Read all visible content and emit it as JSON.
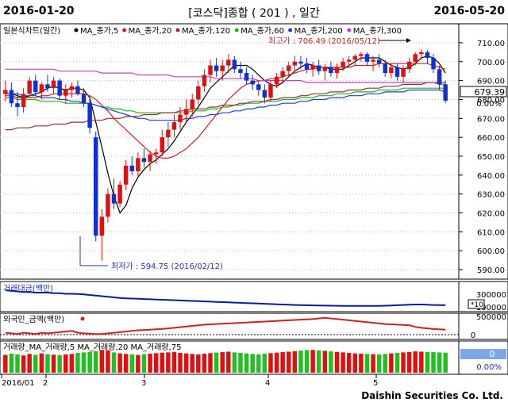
{
  "header": {
    "start_date": "2016-01-20",
    "title": "[코스닥]종합 ( 201 ) , 일간",
    "end_date": "2016-05-20"
  },
  "legend": {
    "main_label": "일본식차트(일간)",
    "items": [
      {
        "label": "MA_종가,5",
        "color": "#000000"
      },
      {
        "label": "MA_종가,20",
        "color": "#d02020"
      },
      {
        "label": "MA_종가,120",
        "color": "#903030"
      },
      {
        "label": "MA_종가,60",
        "color": "#20b020"
      },
      {
        "label": "MA_종가,200",
        "color": "#2040c0"
      },
      {
        "label": "MA_종가,300",
        "color": "#c040c0"
      }
    ]
  },
  "annotations": {
    "high": "최고가 : 706.49 (2016/05/12)",
    "low": "최저가 : 594.75 (2016/02/12)"
  },
  "price_box": {
    "value": "679.39",
    "change": "0.00%"
  },
  "panel2": {
    "label": "거래대금(백만)",
    "ticks": [
      "300000",
      "100000"
    ],
    "scale": "*10"
  },
  "panel3": {
    "label": "외국인_금액(백만)",
    "ticks": [
      "500000",
      "0"
    ]
  },
  "panel4": {
    "label": "거래량_MA_거래량,5  MA_거래량,20  MA_거래량,75",
    "value": "0",
    "change": "0.00%"
  },
  "x_labels": [
    "2016/01",
    "2",
    "3",
    "4",
    "5"
  ],
  "footer": "Daishin Securities Co. Ltd.",
  "chart_data": {
    "type": "candlestick",
    "title": "[코스닥]종합 ( 201 ) , 일간",
    "x_range": [
      "2016-01-20",
      "2016-05-20"
    ],
    "ylim": [
      585,
      715
    ],
    "yticks": [
      590,
      600,
      610,
      620,
      630,
      640,
      650,
      660,
      670,
      680,
      690,
      700,
      710
    ],
    "last_close": 679.39,
    "high": {
      "value": 706.49,
      "date": "2016-05-12"
    },
    "low": {
      "value": 594.75,
      "date": "2016-02-12"
    },
    "candles": [
      [
        683,
        690,
        679,
        685
      ],
      [
        685,
        689,
        676,
        678
      ],
      [
        678,
        684,
        671,
        676
      ],
      [
        676,
        686,
        673,
        683
      ],
      [
        683,
        692,
        681,
        690
      ],
      [
        690,
        693,
        682,
        684
      ],
      [
        684,
        689,
        680,
        688
      ],
      [
        688,
        693,
        684,
        686
      ],
      [
        686,
        692,
        683,
        690
      ],
      [
        690,
        691,
        680,
        682
      ],
      [
        682,
        688,
        678,
        685
      ],
      [
        685,
        689,
        681,
        687
      ],
      [
        687,
        690,
        682,
        683
      ],
      [
        683,
        686,
        676,
        678
      ],
      [
        678,
        681,
        662,
        665
      ],
      [
        660,
        663,
        605,
        608
      ],
      [
        608,
        622,
        594.75,
        618
      ],
      [
        618,
        633,
        615,
        630
      ],
      [
        630,
        638,
        622,
        625
      ],
      [
        625,
        637,
        623,
        635
      ],
      [
        635,
        648,
        632,
        645
      ],
      [
        645,
        650,
        640,
        642
      ],
      [
        642,
        652,
        639,
        649
      ],
      [
        649,
        654,
        644,
        647
      ],
      [
        647,
        653,
        642,
        651
      ],
      [
        651,
        654,
        646,
        652
      ],
      [
        652,
        664,
        650,
        660
      ],
      [
        660,
        668,
        655,
        664
      ],
      [
        664,
        672,
        660,
        668
      ],
      [
        668,
        676,
        664,
        672
      ],
      [
        672,
        680,
        668,
        675
      ],
      [
        675,
        683,
        671,
        680
      ],
      [
        680,
        690,
        677,
        687
      ],
      [
        687,
        696,
        684,
        693
      ],
      [
        693,
        701,
        689,
        698
      ],
      [
        698,
        702,
        692,
        695
      ],
      [
        695,
        701,
        690,
        698
      ],
      [
        698,
        704,
        694,
        701
      ],
      [
        701,
        703,
        694,
        696
      ],
      [
        696,
        700,
        691,
        694
      ],
      [
        694,
        697,
        688,
        690
      ],
      [
        690,
        693,
        685,
        688
      ],
      [
        688,
        690,
        682,
        685
      ],
      [
        685,
        688,
        678,
        681
      ],
      [
        681,
        690,
        679,
        688
      ],
      [
        688,
        694,
        686,
        692
      ],
      [
        692,
        697,
        689,
        695
      ],
      [
        695,
        700,
        692,
        698
      ],
      [
        698,
        703,
        695,
        700
      ],
      [
        700,
        703,
        696,
        699
      ],
      [
        699,
        702,
        694,
        696
      ],
      [
        696,
        700,
        692,
        698
      ],
      [
        698,
        701,
        693,
        695
      ],
      [
        695,
        699,
        690,
        697
      ],
      [
        697,
        700,
        692,
        694
      ],
      [
        694,
        699,
        691,
        697
      ],
      [
        697,
        702,
        695,
        700
      ],
      [
        700,
        703,
        697,
        701
      ],
      [
        701,
        704,
        698,
        703
      ],
      [
        703,
        705,
        700,
        704
      ],
      [
        704,
        705,
        698,
        700
      ],
      [
        700,
        703,
        695,
        701
      ],
      [
        701,
        704,
        697,
        699
      ],
      [
        699,
        701,
        692,
        694
      ],
      [
        694,
        699,
        691,
        697
      ],
      [
        697,
        699,
        690,
        692
      ],
      [
        692,
        698,
        689,
        696
      ],
      [
        696,
        702,
        694,
        700
      ],
      [
        700,
        705,
        698,
        704
      ],
      [
        704,
        706.49,
        701,
        705
      ],
      [
        705,
        706,
        699,
        702
      ],
      [
        702,
        704,
        694,
        696
      ],
      [
        696,
        698,
        685,
        688
      ],
      [
        688,
        690,
        678,
        679.39
      ]
    ],
    "ma": {
      "MA_종가,5": [
        683,
        683,
        682,
        681,
        682,
        683,
        684,
        686,
        687,
        686,
        685,
        686,
        686,
        685,
        681,
        668,
        655,
        641,
        629,
        620,
        624,
        633,
        639,
        643,
        646,
        648,
        651,
        654,
        658,
        663,
        668,
        672,
        676,
        681,
        686,
        689,
        692,
        695,
        698,
        698,
        698,
        696,
        693,
        690,
        688,
        687,
        689,
        692,
        695,
        697,
        699,
        698,
        697,
        697,
        696,
        696,
        696,
        698,
        700,
        702,
        702,
        702,
        702,
        700,
        698,
        697,
        696,
        697,
        699,
        702,
        703,
        702,
        699,
        694
      ],
      "MA_종가,20": [
        682,
        682,
        681,
        681,
        681,
        681,
        682,
        682,
        683,
        683,
        683,
        683,
        683,
        683,
        682,
        680,
        677,
        674,
        670,
        667,
        664,
        661,
        658,
        655,
        652,
        650,
        649,
        649,
        650,
        652,
        654,
        657,
        660,
        664,
        668,
        672,
        676,
        680,
        683,
        686,
        688,
        689,
        690,
        690,
        691,
        691,
        692,
        693,
        694,
        695,
        696,
        696,
        697,
        697,
        697,
        697,
        697,
        697,
        698,
        698,
        698,
        698,
        699,
        699,
        699,
        699,
        699,
        699,
        699,
        699,
        699,
        698,
        697,
        696
      ],
      "MA_종가,60": [
        681,
        681,
        680,
        680,
        680,
        680,
        679,
        679,
        679,
        679,
        678,
        678,
        678,
        678,
        678,
        677,
        676,
        676,
        675,
        675,
        674,
        674,
        673,
        673,
        673,
        673,
        673,
        673,
        673,
        673,
        673,
        674,
        674,
        674,
        675,
        675,
        676,
        676,
        677,
        677,
        678,
        678,
        678,
        679,
        679,
        679,
        680,
        680,
        680,
        681,
        681,
        681,
        682,
        682,
        682,
        683,
        683,
        683,
        684,
        684,
        684,
        684,
        685,
        685,
        685,
        685,
        686,
        686,
        686,
        686,
        686,
        686,
        686,
        686
      ],
      "MA_종가,120": [
        664,
        664,
        665,
        665,
        665,
        666,
        666,
        666,
        667,
        667,
        667,
        668,
        668,
        668,
        669,
        669,
        669,
        670,
        670,
        670,
        671,
        671,
        671,
        672,
        672,
        672,
        673,
        673,
        673,
        674,
        674,
        675,
        675,
        675,
        676,
        676,
        677,
        677,
        677,
        678,
        678,
        679,
        679,
        679,
        680,
        680,
        681,
        681,
        681,
        682,
        682,
        683,
        683,
        683,
        684,
        684,
        684,
        685,
        685,
        685,
        686,
        686,
        686,
        687,
        687,
        687,
        688,
        688,
        688,
        688,
        689,
        689,
        689,
        689
      ],
      "MA_종가,200": [
        683,
        683,
        683,
        682,
        682,
        682,
        681,
        681,
        681,
        680,
        680,
        679,
        679,
        678,
        678,
        677,
        676,
        675,
        674,
        673,
        672,
        671,
        670,
        670,
        669,
        669,
        669,
        669,
        669,
        669,
        670,
        670,
        671,
        671,
        672,
        672,
        673,
        673,
        674,
        674,
        675,
        675,
        676,
        676,
        677,
        677,
        678,
        678,
        678,
        679,
        679,
        680,
        680,
        680,
        681,
        681,
        681,
        682,
        682,
        682,
        683,
        683,
        683,
        684,
        684,
        684,
        684,
        685,
        685,
        685,
        685,
        685,
        685,
        684
      ],
      "MA_종가,300": [
        696,
        696,
        696,
        696,
        696,
        696,
        696,
        696,
        696,
        695,
        695,
        695,
        695,
        695,
        695,
        695,
        694,
        694,
        694,
        694,
        694,
        694,
        693,
        693,
        693,
        693,
        693,
        693,
        692,
        692,
        692,
        692,
        692,
        692,
        692,
        691,
        691,
        691,
        691,
        691,
        691,
        691,
        690,
        690,
        690,
        690,
        690,
        690,
        690,
        690,
        689,
        689,
        689,
        689,
        689,
        689,
        689,
        689,
        689,
        689,
        689,
        689,
        689,
        689,
        689,
        689,
        689,
        689,
        689,
        689,
        689,
        689,
        688,
        688
      ]
    },
    "trading_value": [
      260,
      255,
      250,
      245,
      245,
      240,
      240,
      240,
      235,
      235,
      230,
      230,
      228,
      225,
      220,
      215,
      210,
      205,
      200,
      195,
      192,
      190,
      188,
      186,
      184,
      182,
      180,
      178,
      176,
      174,
      172,
      170,
      168,
      166,
      164,
      162,
      160,
      158,
      156,
      154,
      152,
      150,
      148,
      146,
      144,
      142,
      140,
      138,
      136,
      135,
      134,
      133,
      132,
      131,
      130,
      129,
      128,
      128,
      128,
      128,
      128,
      128,
      128,
      130,
      132,
      134,
      136,
      138,
      140,
      140,
      138,
      136,
      135,
      134
    ],
    "foreign_amount": [
      60,
      40,
      20,
      60,
      40,
      20,
      60,
      40,
      60,
      80,
      100,
      120,
      60,
      40,
      30,
      20,
      20,
      40,
      60,
      80,
      100,
      120,
      140,
      150,
      160,
      170,
      180,
      200,
      220,
      240,
      260,
      280,
      300,
      320,
      330,
      340,
      350,
      360,
      370,
      380,
      390,
      400,
      410,
      420,
      430,
      440,
      450,
      460,
      470,
      480,
      490,
      500,
      520,
      540,
      520,
      500,
      480,
      460,
      440,
      420,
      400,
      380,
      360,
      340,
      330,
      320,
      310,
      300,
      250,
      220,
      200,
      180,
      170,
      160
    ],
    "volume": [
      70,
      75,
      72,
      68,
      74,
      70,
      76,
      73,
      71,
      69,
      72,
      74,
      78,
      80,
      82,
      85,
      90,
      88,
      80,
      76,
      74,
      72,
      70,
      73,
      75,
      77,
      79,
      80,
      82,
      78,
      76,
      74,
      72,
      75,
      77,
      79,
      81,
      83,
      80,
      78,
      76,
      74,
      72,
      75,
      77,
      79,
      81,
      83,
      85,
      87,
      89,
      90,
      88,
      86,
      84,
      82,
      80,
      78,
      76,
      75,
      74,
      73,
      72,
      74,
      76,
      78,
      80,
      82,
      84,
      83,
      82,
      81,
      80,
      79
    ]
  }
}
